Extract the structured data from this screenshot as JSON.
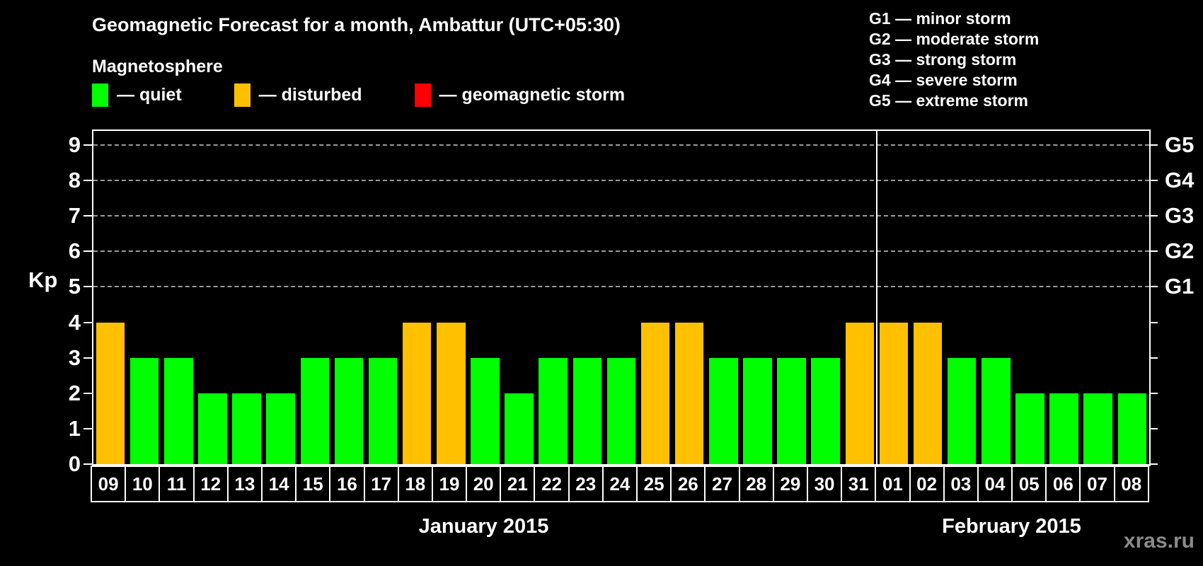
{
  "header": {
    "title": "Geomagnetic Forecast for a month, Ambattur (UTC+05:30)",
    "subtitle": "Magnetosphere"
  },
  "legend": [
    {
      "name": "quiet",
      "color": "#00ff00",
      "label": "— quiet"
    },
    {
      "name": "disturbed",
      "color": "#ffc000",
      "label": "— disturbed"
    },
    {
      "name": "storm",
      "color": "#ff0000",
      "label": "— geomagnetic storm"
    }
  ],
  "g_scale_legend": [
    "G1 — minor storm",
    "G2 — moderate storm",
    "G3 — strong storm",
    "G4 — severe storm",
    "G5 — extreme storm"
  ],
  "chart_data": {
    "type": "bar",
    "title": "Geomagnetic Forecast for a month, Ambattur (UTC+05:30)",
    "xlabel": "",
    "ylabel": "Kp",
    "ylim": [
      0,
      9.4
    ],
    "grid": "dashed horizontal lines at Kp 5-9 only",
    "y_ticks": [
      0,
      1,
      2,
      3,
      4,
      5,
      6,
      7,
      8,
      9
    ],
    "gridlines_kp": [
      5,
      6,
      7,
      8,
      9
    ],
    "right_axis_labels": [
      {
        "label": "G5",
        "kp": 9
      },
      {
        "label": "G4",
        "kp": 8
      },
      {
        "label": "G3",
        "kp": 7
      },
      {
        "label": "G2",
        "kp": 6
      },
      {
        "label": "G1",
        "kp": 5
      }
    ],
    "categories": [
      "09",
      "10",
      "11",
      "12",
      "13",
      "14",
      "15",
      "16",
      "17",
      "18",
      "19",
      "20",
      "21",
      "22",
      "23",
      "24",
      "25",
      "26",
      "27",
      "28",
      "29",
      "30",
      "31",
      "01",
      "02",
      "03",
      "04",
      "05",
      "06",
      "07",
      "08"
    ],
    "values": [
      4,
      3,
      3,
      2,
      2,
      2,
      3,
      3,
      3,
      4,
      4,
      3,
      2,
      3,
      3,
      3,
      4,
      4,
      3,
      3,
      3,
      3,
      4,
      4,
      4,
      3,
      3,
      2,
      2,
      2,
      2
    ],
    "statuses": [
      "disturbed",
      "quiet",
      "quiet",
      "quiet",
      "quiet",
      "quiet",
      "quiet",
      "quiet",
      "quiet",
      "disturbed",
      "disturbed",
      "quiet",
      "quiet",
      "quiet",
      "quiet",
      "quiet",
      "disturbed",
      "disturbed",
      "quiet",
      "quiet",
      "quiet",
      "quiet",
      "disturbed",
      "disturbed",
      "disturbed",
      "quiet",
      "quiet",
      "quiet",
      "quiet",
      "quiet",
      "quiet"
    ],
    "colors": {
      "quiet": "#00ff00",
      "disturbed": "#ffc000",
      "storm": "#ff0000"
    },
    "months": [
      {
        "label": "January 2015",
        "days": 23
      },
      {
        "label": "February 2015",
        "days": 8
      }
    ],
    "month_divider_after_index": 22
  },
  "footer": {
    "watermark": "xras.ru"
  }
}
